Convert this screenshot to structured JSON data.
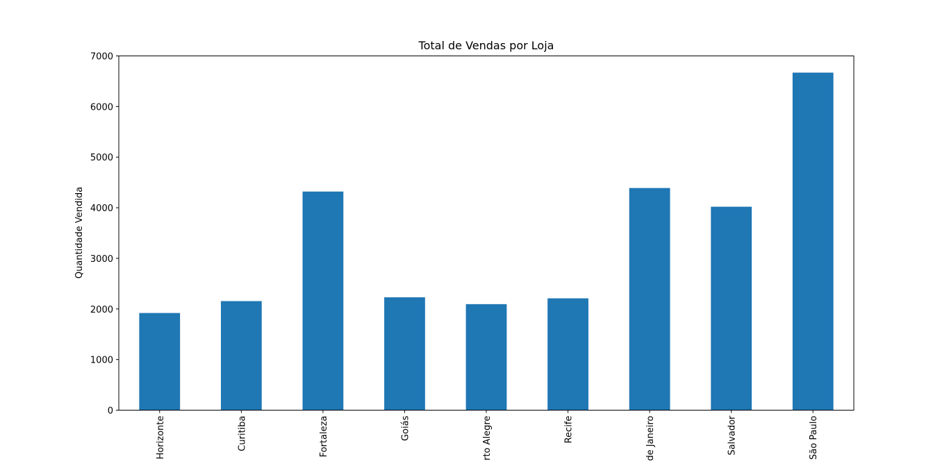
{
  "chart_data": {
    "type": "bar",
    "title": "Total de Vendas por Loja",
    "xlabel": "",
    "ylabel": "Quantidade Vendida",
    "categories": [
      "Belo Horizonte",
      "Curitiba",
      "Fortaleza",
      "Goiás",
      "Porto Alegre",
      "Recife",
      "Rio de Janeiro",
      "Salvador",
      "São Paulo"
    ],
    "values": [
      1920,
      2155,
      4320,
      2230,
      2095,
      2210,
      4390,
      4020,
      6670
    ],
    "ylim": [
      0,
      7000
    ],
    "yticks": [
      0,
      1000,
      2000,
      3000,
      4000,
      5000,
      6000,
      7000
    ],
    "grid": false,
    "bar_color": "#1f77b4"
  }
}
